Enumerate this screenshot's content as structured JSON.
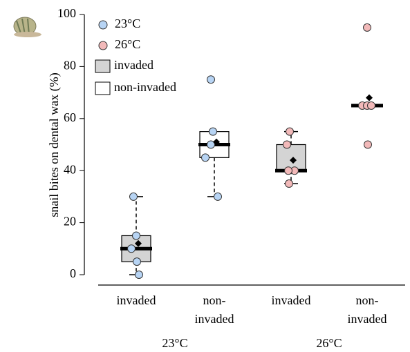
{
  "chart_data": {
    "type": "box",
    "y_label": "snail bites on dental wax (%)",
    "ylim": [
      0,
      100
    ],
    "yticks": [
      0,
      20,
      40,
      60,
      80,
      100
    ],
    "categories": [
      [
        "invaded"
      ],
      [
        "non-",
        "invaded"
      ],
      [
        "invaded"
      ],
      [
        "non-",
        "invaded"
      ]
    ],
    "groups": [
      "23°C",
      "26°C"
    ],
    "legend": [
      {
        "name": "23°C",
        "marker": "circle",
        "color": "#b7d4f4"
      },
      {
        "name": "26°C",
        "marker": "circle",
        "color": "#f2b9b9"
      },
      {
        "name": "invaded",
        "marker": "box",
        "color": "#d4d4d4"
      },
      {
        "name": "non-invaded",
        "marker": "box",
        "color": "#ffffff"
      }
    ],
    "boxes": [
      {
        "group": 0,
        "fill": "#d4d4d4",
        "point_color": "#b7d4f4",
        "whisker_low": 0,
        "q1": 5,
        "median": 10,
        "q3": 15,
        "whisker_high": 30,
        "mean": 12,
        "points": [
          30,
          15,
          10,
          5,
          0
        ]
      },
      {
        "group": 0,
        "fill": "#ffffff",
        "point_color": "#b7d4f4",
        "whisker_low": 30,
        "q1": 45,
        "median": 50,
        "q3": 55,
        "whisker_high": 55,
        "mean": 51,
        "points": [
          75,
          55,
          50,
          45,
          30
        ]
      },
      {
        "group": 1,
        "fill": "#d4d4d4",
        "point_color": "#f2b9b9",
        "whisker_low": 35,
        "q1": 40,
        "median": 40,
        "q3": 50,
        "whisker_high": 55,
        "mean": 44,
        "points": [
          55,
          50,
          40,
          40,
          35
        ]
      },
      {
        "group": 1,
        "fill": "#ffffff",
        "point_color": "#f2b9b9",
        "whisker_low": null,
        "q1": 65,
        "median": 65,
        "q3": 65,
        "whisker_high": null,
        "mean": 68,
        "points": [
          95,
          65,
          65,
          65,
          50
        ]
      }
    ]
  }
}
